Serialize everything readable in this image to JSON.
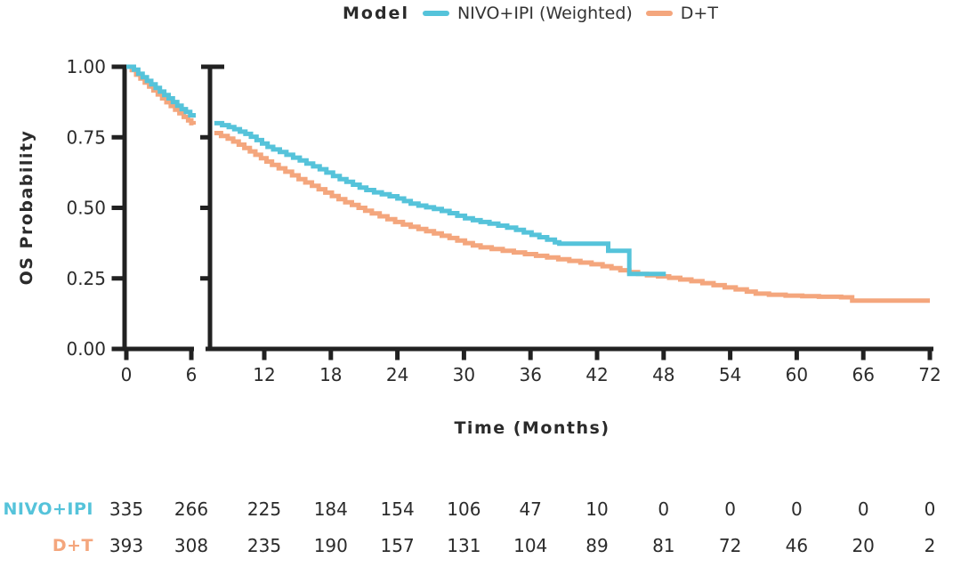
{
  "legend": {
    "title": "Model",
    "entries": [
      {
        "label": "NIVO+IPI (Weighted)",
        "color": "#55c3da"
      },
      {
        "label": "D+T",
        "color": "#f4a67d"
      }
    ]
  },
  "axes": {
    "ylabel": "OS Probability",
    "xlabel": "Time (Months)"
  },
  "colors": {
    "nivo_ipi": "#55c3da",
    "dt": "#f4a67d",
    "axis": "#212121",
    "text": "#2b2b2b"
  },
  "chart_data": {
    "type": "line",
    "subtype": "kaplan-meier step survival curves with broken x-axis",
    "title": "",
    "legend_title": "Model",
    "xlabel": "Time (Months)",
    "ylabel": "OS Probability",
    "x_ticks": [
      0,
      6,
      12,
      18,
      24,
      30,
      36,
      42,
      48,
      54,
      60,
      66,
      72
    ],
    "y_ticks": [
      0.0,
      0.25,
      0.5,
      0.75,
      1.0
    ],
    "y_tick_labels": [
      "0.00",
      "0.25",
      "0.50",
      "0.75",
      "1.00"
    ],
    "ylim": [
      0,
      1
    ],
    "xlim": [
      0,
      72
    ],
    "x_axis_break_after_month": 6,
    "grid": false,
    "legend_position": "top-center",
    "series": [
      {
        "name": "NIVO+IPI (Weighted)",
        "color": "#55c3da",
        "points_before_break": [
          [
            0,
            1.0
          ],
          [
            0.7,
            0.99
          ],
          [
            1.1,
            0.975
          ],
          [
            1.5,
            0.963
          ],
          [
            1.9,
            0.95
          ],
          [
            2.3,
            0.938
          ],
          [
            2.7,
            0.925
          ],
          [
            3.1,
            0.912
          ],
          [
            3.5,
            0.9
          ],
          [
            3.9,
            0.888
          ],
          [
            4.3,
            0.875
          ],
          [
            4.7,
            0.862
          ],
          [
            5.1,
            0.85
          ],
          [
            5.5,
            0.84
          ],
          [
            5.9,
            0.828
          ],
          [
            6.2,
            0.82
          ]
        ],
        "points_after_break": [
          [
            7.5,
            0.8
          ],
          [
            8.2,
            0.793
          ],
          [
            8.8,
            0.786
          ],
          [
            9.3,
            0.779
          ],
          [
            9.8,
            0.77
          ],
          [
            10.3,
            0.762
          ],
          [
            10.8,
            0.752
          ],
          [
            11.3,
            0.74
          ],
          [
            11.8,
            0.728
          ],
          [
            12.3,
            0.716
          ],
          [
            12.8,
            0.707
          ],
          [
            13.4,
            0.698
          ],
          [
            14.0,
            0.688
          ],
          [
            14.6,
            0.678
          ],
          [
            15.2,
            0.668
          ],
          [
            15.8,
            0.657
          ],
          [
            16.4,
            0.647
          ],
          [
            17.0,
            0.637
          ],
          [
            17.6,
            0.625
          ],
          [
            18.2,
            0.613
          ],
          [
            18.8,
            0.602
          ],
          [
            19.4,
            0.592
          ],
          [
            20.0,
            0.582
          ],
          [
            20.6,
            0.572
          ],
          [
            21.2,
            0.563
          ],
          [
            21.9,
            0.555
          ],
          [
            22.6,
            0.548
          ],
          [
            23.3,
            0.541
          ],
          [
            24.0,
            0.533
          ],
          [
            24.6,
            0.524
          ],
          [
            25.2,
            0.515
          ],
          [
            25.9,
            0.508
          ],
          [
            26.6,
            0.502
          ],
          [
            27.3,
            0.496
          ],
          [
            28.0,
            0.489
          ],
          [
            28.7,
            0.481
          ],
          [
            29.4,
            0.472
          ],
          [
            30.1,
            0.463
          ],
          [
            30.8,
            0.456
          ],
          [
            31.5,
            0.45
          ],
          [
            32.3,
            0.444
          ],
          [
            33.1,
            0.437
          ],
          [
            33.9,
            0.43
          ],
          [
            34.7,
            0.422
          ],
          [
            35.4,
            0.413
          ],
          [
            36.1,
            0.404
          ],
          [
            36.8,
            0.396
          ],
          [
            37.5,
            0.387
          ],
          [
            38.2,
            0.378
          ],
          [
            38.6,
            0.373
          ],
          [
            43.0,
            0.348
          ],
          [
            44.9,
            0.266
          ],
          [
            48.2,
            0.266
          ]
        ]
      },
      {
        "name": "D+T",
        "color": "#f4a67d",
        "points_before_break": [
          [
            0,
            1.0
          ],
          [
            0.5,
            0.988
          ],
          [
            0.9,
            0.972
          ],
          [
            1.3,
            0.958
          ],
          [
            1.7,
            0.944
          ],
          [
            2.1,
            0.93
          ],
          [
            2.5,
            0.916
          ],
          [
            2.9,
            0.902
          ],
          [
            3.3,
            0.888
          ],
          [
            3.7,
            0.874
          ],
          [
            4.1,
            0.861
          ],
          [
            4.5,
            0.848
          ],
          [
            4.9,
            0.835
          ],
          [
            5.3,
            0.822
          ],
          [
            5.7,
            0.81
          ],
          [
            6.0,
            0.8
          ],
          [
            6.2,
            0.795
          ]
        ],
        "points_after_break": [
          [
            7.5,
            0.765
          ],
          [
            8.1,
            0.755
          ],
          [
            8.7,
            0.745
          ],
          [
            9.2,
            0.735
          ],
          [
            9.7,
            0.724
          ],
          [
            10.2,
            0.712
          ],
          [
            10.7,
            0.7
          ],
          [
            11.2,
            0.688
          ],
          [
            11.7,
            0.676
          ],
          [
            12.2,
            0.664
          ],
          [
            12.7,
            0.652
          ],
          [
            13.3,
            0.64
          ],
          [
            13.9,
            0.628
          ],
          [
            14.5,
            0.615
          ],
          [
            15.1,
            0.602
          ],
          [
            15.7,
            0.59
          ],
          [
            16.3,
            0.578
          ],
          [
            16.9,
            0.566
          ],
          [
            17.5,
            0.554
          ],
          [
            18.1,
            0.542
          ],
          [
            18.7,
            0.531
          ],
          [
            19.3,
            0.52
          ],
          [
            19.9,
            0.51
          ],
          [
            20.5,
            0.5
          ],
          [
            21.1,
            0.49
          ],
          [
            21.7,
            0.48
          ],
          [
            22.4,
            0.47
          ],
          [
            23.1,
            0.46
          ],
          [
            23.8,
            0.45
          ],
          [
            24.5,
            0.441
          ],
          [
            25.2,
            0.433
          ],
          [
            25.9,
            0.425
          ],
          [
            26.6,
            0.417
          ],
          [
            27.3,
            0.409
          ],
          [
            28.0,
            0.401
          ],
          [
            28.7,
            0.393
          ],
          [
            29.4,
            0.384
          ],
          [
            30.1,
            0.375
          ],
          [
            30.8,
            0.367
          ],
          [
            31.5,
            0.36
          ],
          [
            32.5,
            0.354
          ],
          [
            33.5,
            0.348
          ],
          [
            34.5,
            0.342
          ],
          [
            35.5,
            0.336
          ],
          [
            36.5,
            0.33
          ],
          [
            37.5,
            0.324
          ],
          [
            38.5,
            0.318
          ],
          [
            39.5,
            0.312
          ],
          [
            40.5,
            0.306
          ],
          [
            41.5,
            0.3
          ],
          [
            42.5,
            0.293
          ],
          [
            43.3,
            0.286
          ],
          [
            44.1,
            0.279
          ],
          [
            44.9,
            0.272
          ],
          [
            45.7,
            0.266
          ],
          [
            46.5,
            0.261
          ],
          [
            47.5,
            0.257
          ],
          [
            48.5,
            0.252
          ],
          [
            49.5,
            0.246
          ],
          [
            50.5,
            0.24
          ],
          [
            51.5,
            0.233
          ],
          [
            52.5,
            0.226
          ],
          [
            53.5,
            0.218
          ],
          [
            54.5,
            0.211
          ],
          [
            55.5,
            0.203
          ],
          [
            56.3,
            0.196
          ],
          [
            57.5,
            0.192
          ],
          [
            59.0,
            0.189
          ],
          [
            60.5,
            0.187
          ],
          [
            62.0,
            0.185
          ],
          [
            64.0,
            0.183
          ],
          [
            65.0,
            0.171
          ],
          [
            72.0,
            0.171
          ]
        ]
      }
    ],
    "risk_table": {
      "columns": [
        0,
        6,
        12,
        18,
        24,
        30,
        36,
        42,
        48,
        54,
        60,
        66,
        72
      ],
      "rows": [
        {
          "label": "NIVO+IPI",
          "color": "#55c3da",
          "counts": [
            335,
            266,
            225,
            184,
            154,
            106,
            47,
            10,
            0,
            0,
            0,
            0,
            0
          ]
        },
        {
          "label": "D+T",
          "color": "#f4a67d",
          "counts": [
            393,
            308,
            235,
            190,
            157,
            131,
            104,
            89,
            81,
            72,
            46,
            20,
            2
          ]
        }
      ]
    }
  }
}
